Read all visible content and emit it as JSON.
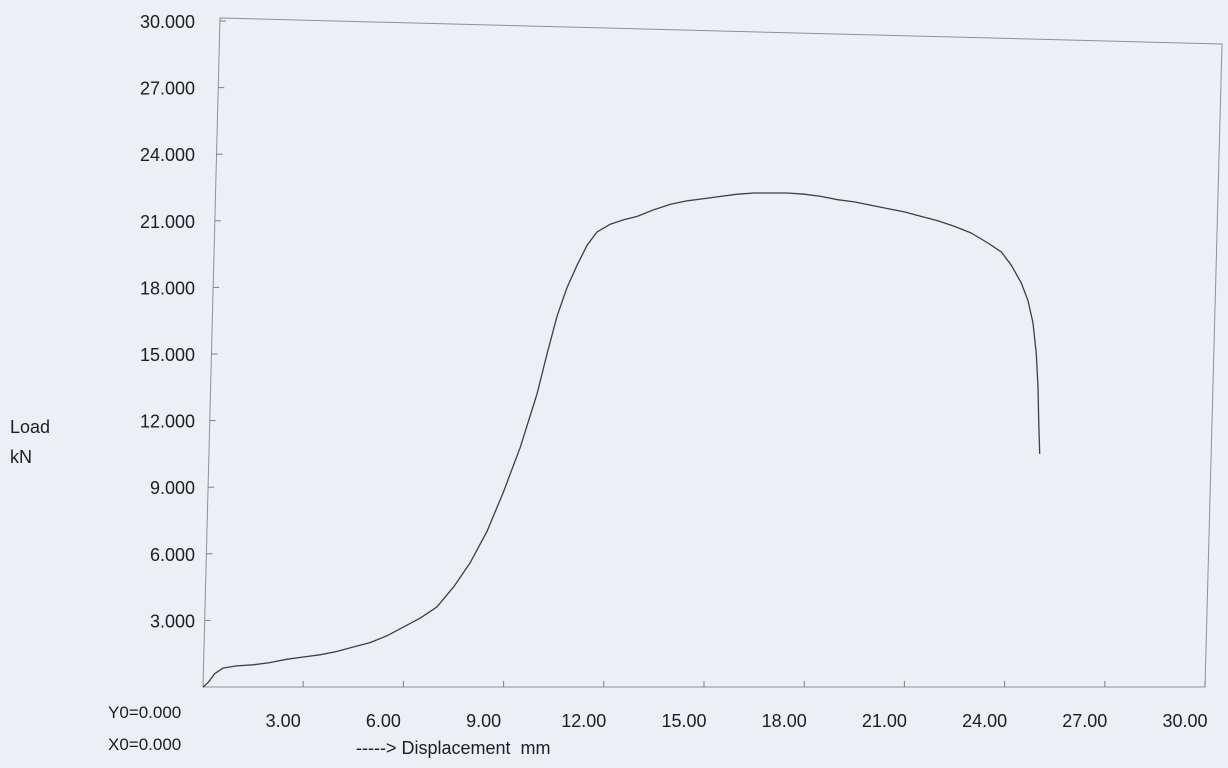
{
  "chart_data": {
    "type": "line",
    "title": "",
    "ylabel_line1": "Load",
    "ylabel_line2": "kN",
    "xlabel": "-----> Displacement  mm",
    "y_origin_label": "Y0=0.000",
    "x_origin_label": "X0=0.000",
    "xlim": [
      0,
      30
    ],
    "ylim": [
      0,
      30
    ],
    "x_ticks": [
      3,
      6,
      9,
      12,
      15,
      18,
      21,
      24,
      27,
      30
    ],
    "x_tick_labels": [
      "3.00",
      "6.00",
      "9.00",
      "12.00",
      "15.00",
      "18.00",
      "21.00",
      "24.00",
      "27.00",
      "30.00"
    ],
    "y_ticks": [
      3,
      6,
      9,
      12,
      15,
      18,
      21,
      24,
      27,
      30
    ],
    "y_tick_labels": [
      "3.000",
      "6.000",
      "9.000",
      "12.000",
      "15.000",
      "18.000",
      "21.000",
      "24.000",
      "27.000",
      "30.000"
    ],
    "grid": false,
    "series": [
      {
        "color": "#3a3f4a",
        "x": [
          0.0,
          0.15,
          0.35,
          0.6,
          1.0,
          1.5,
          2.0,
          2.5,
          3.0,
          3.5,
          4.0,
          4.5,
          5.0,
          5.5,
          6.0,
          6.5,
          7.0,
          7.5,
          8.0,
          8.5,
          9.0,
          9.5,
          10.0,
          10.3,
          10.6,
          10.9,
          11.2,
          11.5,
          11.8,
          12.2,
          12.6,
          13.0,
          13.5,
          14.0,
          14.5,
          15.0,
          15.5,
          16.0,
          16.5,
          17.0,
          17.5,
          18.0,
          18.5,
          19.0,
          19.5,
          20.0,
          20.5,
          21.0,
          21.5,
          22.0,
          22.5,
          23.0,
          23.5,
          23.9,
          24.2,
          24.5,
          24.7,
          24.85,
          24.95,
          25.0,
          25.02,
          25.05
        ],
        "y": [
          0.0,
          0.2,
          0.6,
          0.85,
          0.95,
          1.0,
          1.1,
          1.25,
          1.35,
          1.45,
          1.6,
          1.8,
          2.0,
          2.3,
          2.7,
          3.1,
          3.6,
          4.5,
          5.6,
          7.0,
          8.8,
          10.8,
          13.2,
          15.0,
          16.7,
          18.0,
          19.0,
          19.9,
          20.5,
          20.85,
          21.05,
          21.2,
          21.5,
          21.75,
          21.9,
          22.0,
          22.1,
          22.2,
          22.25,
          22.25,
          22.25,
          22.2,
          22.1,
          21.95,
          21.85,
          21.7,
          21.55,
          21.4,
          21.2,
          21.0,
          20.75,
          20.45,
          20.0,
          19.6,
          19.0,
          18.2,
          17.4,
          16.4,
          15.0,
          13.5,
          12.0,
          10.5
        ]
      }
    ]
  }
}
